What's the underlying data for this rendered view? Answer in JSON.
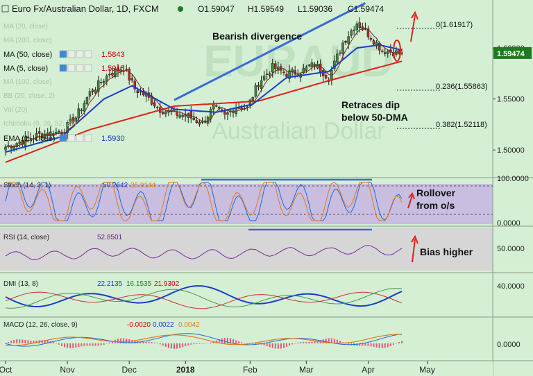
{
  "header": {
    "title": "Euro Fx/Australian Dollar, 1D, FXCM",
    "ohlc": [
      "O1.59047",
      "H1.59549",
      "L1.59036",
      "C1.59474"
    ]
  },
  "indicator_labels": [
    {
      "name": "MA (50, close)",
      "value": "1.5843",
      "value_color": "#cc0000"
    },
    {
      "name": "MA (5, close)",
      "value": "1.5915",
      "value_color": "#cc0000"
    },
    {
      "name": "EMA (1 , close)",
      "value": "1.5930",
      "value_color": "#1a3ccc"
    }
  ],
  "faded_labels": [
    "MA (20, close)",
    "MA (200, close)",
    "Ichimoku (9, 26, 52, 26)",
    "MA (100, close)",
    "BB (20, close, 2)",
    "Vol (20)"
  ],
  "watermark": "EURAUD / Australian Dollar",
  "annotations": {
    "bearish": "Bearish divergence",
    "retraces": [
      "Retraces dip",
      "below 50-DMA"
    ],
    "rollover": [
      "Rollover",
      "from o/s"
    ],
    "bias": "Bias higher"
  },
  "fib_levels": [
    {
      "label": "0(1.61917)",
      "value": 1.61917
    },
    {
      "label": "0.236(1.55863)",
      "value": 1.55863
    },
    {
      "label": "0.382(1.52118)",
      "value": 1.52118
    }
  ],
  "price_axis": {
    "ticks": [
      {
        "v": 1.5,
        "label": "1.50000"
      },
      {
        "v": 1.55,
        "label": "1.55000"
      },
      {
        "v": 1.6,
        "label": "1.60000"
      }
    ],
    "current": {
      "v": 1.59474,
      "label": "1.59474"
    }
  },
  "x_axis": {
    "labels": [
      {
        "label": "Oct",
        "i": 0
      },
      {
        "label": "Nov",
        "i": 22
      },
      {
        "label": "Dec",
        "i": 44
      },
      {
        "label": "2018",
        "i": 64
      },
      {
        "label": "Feb",
        "i": 87
      },
      {
        "label": "Mar",
        "i": 107
      },
      {
        "label": "Apr",
        "i": 129
      },
      {
        "label": "May",
        "i": 150
      }
    ]
  },
  "panes": {
    "stoch": {
      "label": "Stoch (14, 3, 1)",
      "v1": "50.2642",
      "v1_color": "#1a3ccc",
      "v2": "36.9144",
      "v2_color": "#e07a1a",
      "ticks": [
        "100.0000",
        "0.0000"
      ]
    },
    "rsi": {
      "label": "RSI (14, close)",
      "value": "52.8501",
      "value_color": "#6a1a99",
      "tick": "50.0000"
    },
    "dmi": {
      "label": "DMI (13, 8)",
      "v1": "22.2135",
      "v1_color": "#1a3ccc",
      "v2": "16.1535",
      "v2_color": "#2a7a2a",
      "v3": "21.9302",
      "v3_color": "#cc0000",
      "tick": "40.0000"
    },
    "macd": {
      "label": "MACD (12, 26, close, 9)",
      "v1": "-0.0020",
      "v1_color": "#cc0000",
      "v2": "0.0022",
      "v2_color": "#1a3ccc",
      "v3": "0.0042",
      "v3_color": "#e07a1a",
      "tick": "0.0000"
    }
  },
  "colors": {
    "up": "#3a8a3a",
    "down": "#c02a2a",
    "ma50": "#e0201a",
    "ema": "#1a3ccc",
    "trendline": "#3a6ad8",
    "annotation": "#e0201a"
  },
  "chart_data": {
    "type": "candlestick",
    "title": "Euro Fx/Australian Dollar, 1D, FXCM",
    "ylim": [
      1.475,
      1.645
    ],
    "key_points": [
      {
        "i": 0,
        "c": 1.503
      },
      {
        "i": 5,
        "c": 1.508
      },
      {
        "i": 12,
        "c": 1.515
      },
      {
        "i": 20,
        "c": 1.518
      },
      {
        "i": 25,
        "c": 1.532
      },
      {
        "i": 30,
        "c": 1.556
      },
      {
        "i": 37,
        "c": 1.575
      },
      {
        "i": 42,
        "c": 1.581
      },
      {
        "i": 46,
        "c": 1.56
      },
      {
        "i": 50,
        "c": 1.553
      },
      {
        "i": 55,
        "c": 1.54
      },
      {
        "i": 60,
        "c": 1.536
      },
      {
        "i": 65,
        "c": 1.533
      },
      {
        "i": 70,
        "c": 1.526
      },
      {
        "i": 74,
        "c": 1.542
      },
      {
        "i": 78,
        "c": 1.533
      },
      {
        "i": 82,
        "c": 1.543
      },
      {
        "i": 86,
        "c": 1.541
      },
      {
        "i": 90,
        "c": 1.566
      },
      {
        "i": 95,
        "c": 1.581
      },
      {
        "i": 100,
        "c": 1.575
      },
      {
        "i": 105,
        "c": 1.577
      },
      {
        "i": 110,
        "c": 1.584
      },
      {
        "i": 115,
        "c": 1.571
      },
      {
        "i": 120,
        "c": 1.605
      },
      {
        "i": 125,
        "c": 1.625
      },
      {
        "i": 130,
        "c": 1.611
      },
      {
        "i": 134,
        "c": 1.598
      },
      {
        "i": 138,
        "c": 1.596
      },
      {
        "i": 141,
        "c": 1.5947
      }
    ],
    "ma50_points": [
      {
        "i": 0,
        "v": 1.488
      },
      {
        "i": 30,
        "v": 1.52
      },
      {
        "i": 60,
        "v": 1.543
      },
      {
        "i": 90,
        "v": 1.548
      },
      {
        "i": 115,
        "v": 1.568
      },
      {
        "i": 141,
        "v": 1.587
      }
    ],
    "ema_points": [
      {
        "i": 0,
        "v": 1.498
      },
      {
        "i": 20,
        "v": 1.513
      },
      {
        "i": 35,
        "v": 1.55
      },
      {
        "i": 45,
        "v": 1.563
      },
      {
        "i": 60,
        "v": 1.54
      },
      {
        "i": 75,
        "v": 1.537
      },
      {
        "i": 88,
        "v": 1.545
      },
      {
        "i": 100,
        "v": 1.571
      },
      {
        "i": 115,
        "v": 1.577
      },
      {
        "i": 125,
        "v": 1.6
      },
      {
        "i": 133,
        "v": 1.603
      },
      {
        "i": 141,
        "v": 1.598
      }
    ],
    "trendline": {
      "i1": 60,
      "v1": 1.549,
      "i2": 128,
      "v2": 1.644
    }
  }
}
